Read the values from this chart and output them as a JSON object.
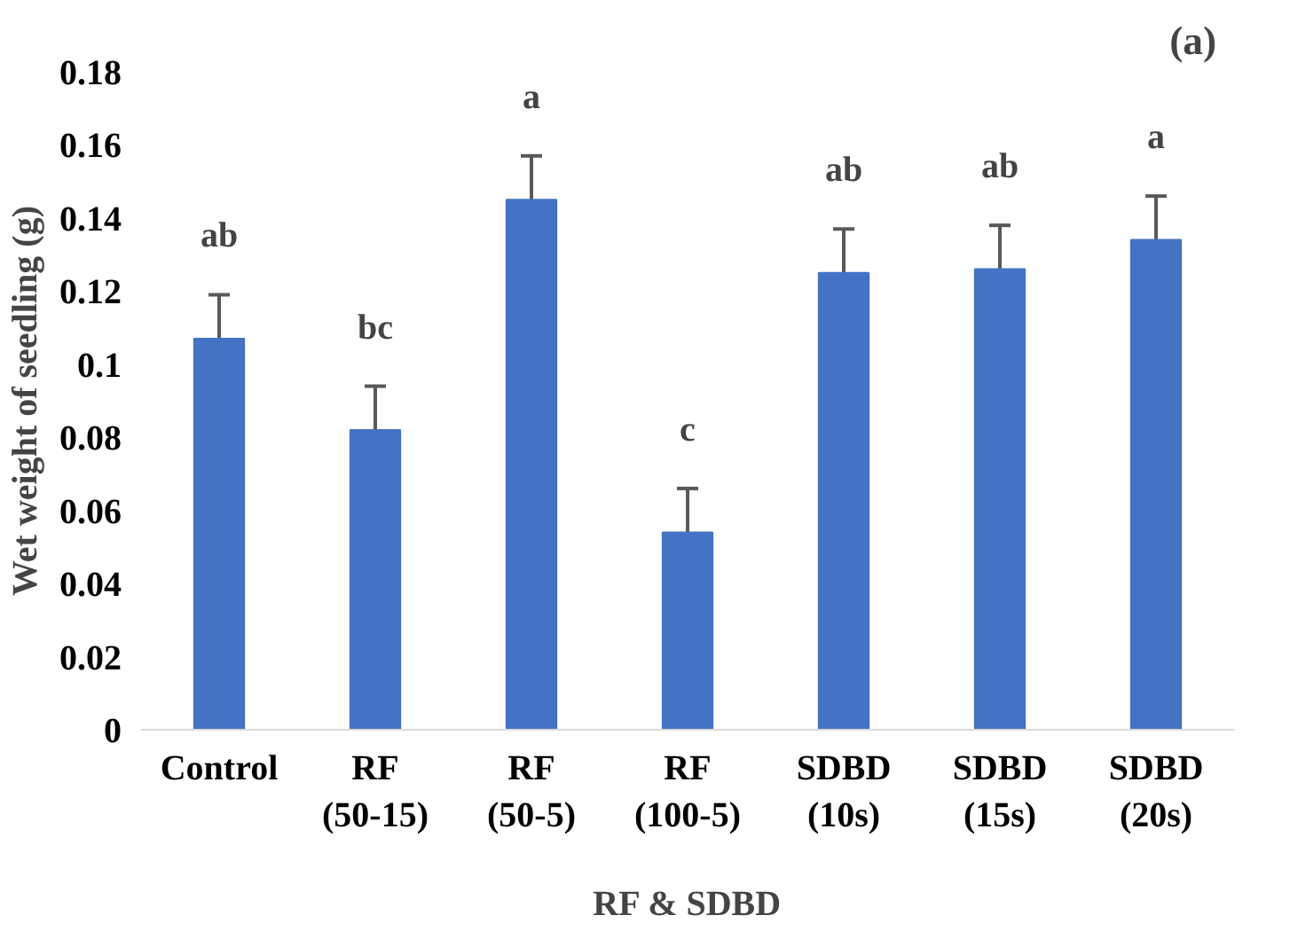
{
  "chart_data": {
    "type": "bar",
    "xlabel": "RF & SDBD",
    "ylabel": "Wet weight of seedling (g)",
    "categories": [
      "Control",
      "RF (50-15)",
      "RF (50-5)",
      "RF (100-5)",
      "SDBD (10s)",
      "SDBD (15s)",
      "SDBD (20s)"
    ],
    "values": [
      0.107,
      0.082,
      0.145,
      0.054,
      0.125,
      0.126,
      0.134
    ],
    "errors": [
      0.012,
      0.012,
      0.012,
      0.012,
      0.012,
      0.012,
      0.012
    ],
    "color": "#4472c4",
    "ylim": [
      0,
      0.18
    ],
    "yticks": [
      0,
      {
        "value": 0.02,
        "label": "0.02"
      },
      {
        "value": 0.04,
        "label": "0.04"
      },
      {
        "value": 0.06,
        "label": "0.06"
      },
      {
        "value": 0.08,
        "label": "0.08"
      },
      {
        "value": 0.1,
        "label": "0.1"
      },
      {
        "value": 0.12,
        "label": "0.12"
      },
      {
        "value": 0.14,
        "label": "0.14"
      },
      {
        "value": 0.16,
        "label": "0.16"
      },
      {
        "value": 0.18,
        "label": "0.18"
      }
    ],
    "grid": false,
    "annotations": [
      "(a)",
      "ab",
      "bc",
      "a",
      "c",
      "ab",
      "ab",
      "a"
    ]
  }
}
